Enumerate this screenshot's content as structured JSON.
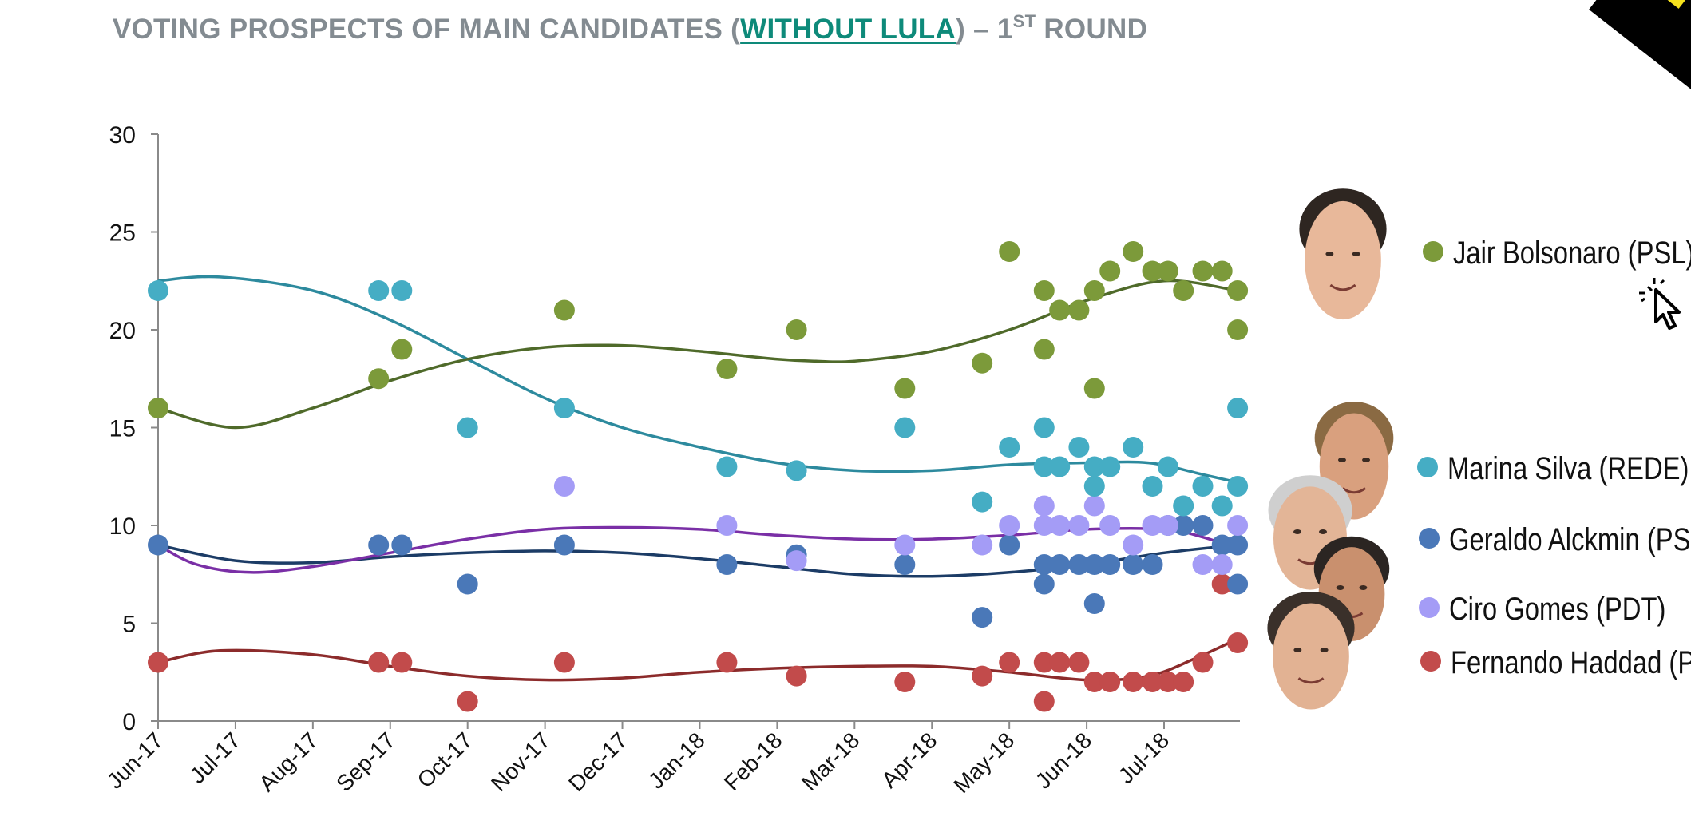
{
  "title": {
    "part1": "VOTING PROSPECTS OF MAIN CANDIDATES (",
    "highlight": "WITHOUT LULA",
    "part2": ") – 1",
    "superscript": "ST",
    "part3": " ROUND"
  },
  "icons": {
    "cursor": "cursor-arrow-icon",
    "corner": "corner-badge-icon"
  },
  "portraits": [
    {
      "name": "portrait-jair-bolsonaro",
      "skin": "#e8b89a",
      "hair": "#2e2621"
    },
    {
      "name": "portrait-marina-silva",
      "skin": "#d9a07e",
      "hair": "#8a6a43"
    },
    {
      "name": "portrait-geraldo-alckmin",
      "skin": "#e3b597",
      "hair": "#cfcfcf"
    },
    {
      "name": "portrait-ciro-gomes",
      "skin": "#c9906e",
      "hair": "#2b2522"
    },
    {
      "name": "portrait-fernando-haddad",
      "skin": "#e2b293",
      "hair": "#3a302a"
    }
  ],
  "chart_data": {
    "type": "scatter",
    "title": "VOTING PROSPECTS OF MAIN CANDIDATES (WITHOUT LULA) – 1ST ROUND",
    "ylim": [
      0,
      30
    ],
    "yticks": [
      0,
      5,
      10,
      15,
      20,
      25,
      30
    ],
    "x_categories": [
      "Jun-17",
      "Jul-17",
      "Aug-17",
      "Sep-17",
      "Oct-17",
      "Nov-17",
      "Dec-17",
      "Jan-18",
      "Feb-18",
      "Mar-18",
      "Apr-18",
      "May-18",
      "Jun-18",
      "Jul-18"
    ],
    "x_unit": "months since Jun-17",
    "xlim": [
      0,
      13.98
    ],
    "trendline": "polynomial",
    "series": [
      {
        "name": "Jair Bolsonaro (PSL)",
        "color": "#7c9a3a",
        "line_color": "#4f6a2a",
        "points": [
          [
            0,
            16
          ],
          [
            2.85,
            17.5
          ],
          [
            3.15,
            19
          ],
          [
            5.25,
            21
          ],
          [
            7.35,
            18
          ],
          [
            8.25,
            20
          ],
          [
            9.65,
            17
          ],
          [
            10.65,
            18.3
          ],
          [
            11,
            24
          ],
          [
            11.45,
            22
          ],
          [
            11.45,
            19
          ],
          [
            11.65,
            21
          ],
          [
            11.9,
            21
          ],
          [
            12.1,
            22
          ],
          [
            12.1,
            17
          ],
          [
            12.3,
            23
          ],
          [
            12.6,
            24
          ],
          [
            12.85,
            23
          ],
          [
            13.05,
            23
          ],
          [
            13.25,
            22
          ],
          [
            13.5,
            23
          ],
          [
            13.75,
            23
          ],
          [
            13.95,
            22
          ],
          [
            13.95,
            20
          ]
        ],
        "trend": [
          [
            0,
            16
          ],
          [
            1,
            15
          ],
          [
            2,
            16
          ],
          [
            3,
            17.4
          ],
          [
            4,
            18.5
          ],
          [
            5,
            19.1
          ],
          [
            6,
            19.2
          ],
          [
            7,
            18.9
          ],
          [
            8,
            18.5
          ],
          [
            8.5,
            18.4
          ],
          [
            9,
            18.4
          ],
          [
            10,
            18.9
          ],
          [
            11,
            20
          ],
          [
            12,
            21.5
          ],
          [
            13,
            22.5
          ],
          [
            13.95,
            22
          ]
        ]
      },
      {
        "name": "Marina Silva (REDE)",
        "color": "#45adc4",
        "line_color": "#2d8a9e",
        "points": [
          [
            0,
            22
          ],
          [
            2.85,
            22
          ],
          [
            3.15,
            22
          ],
          [
            4,
            15
          ],
          [
            5.25,
            16
          ],
          [
            7.35,
            13
          ],
          [
            8.25,
            12.8
          ],
          [
            9.65,
            15
          ],
          [
            10.65,
            11.2
          ],
          [
            11,
            14
          ],
          [
            11.45,
            15
          ],
          [
            11.45,
            13
          ],
          [
            11.65,
            13
          ],
          [
            11.9,
            14
          ],
          [
            12.1,
            13
          ],
          [
            12.1,
            12
          ],
          [
            12.3,
            13
          ],
          [
            12.6,
            14
          ],
          [
            12.85,
            12
          ],
          [
            13.05,
            13
          ],
          [
            13.25,
            11
          ],
          [
            13.5,
            12
          ],
          [
            13.75,
            11
          ],
          [
            13.95,
            16
          ],
          [
            13.95,
            12
          ]
        ],
        "trend": [
          [
            0,
            22.5
          ],
          [
            0.8,
            22.7
          ],
          [
            2,
            22
          ],
          [
            3,
            20.5
          ],
          [
            4,
            18.5
          ],
          [
            5,
            16.5
          ],
          [
            6,
            15
          ],
          [
            7,
            14
          ],
          [
            8,
            13.2
          ],
          [
            9,
            12.8
          ],
          [
            10,
            12.8
          ],
          [
            11,
            13.1
          ],
          [
            12,
            13.2
          ],
          [
            12.8,
            13.2
          ],
          [
            13.5,
            12.6
          ],
          [
            13.95,
            12.2
          ]
        ]
      },
      {
        "name": "Geraldo Alckmin (PSDB)",
        "color": "#4a78b8",
        "line_color": "#1c3c66",
        "points": [
          [
            0,
            9
          ],
          [
            2.85,
            9
          ],
          [
            3.15,
            9
          ],
          [
            4,
            7
          ],
          [
            5.25,
            9
          ],
          [
            7.35,
            8
          ],
          [
            8.25,
            8.5
          ],
          [
            9.65,
            8
          ],
          [
            10.65,
            5.3
          ],
          [
            11,
            9
          ],
          [
            11.45,
            8
          ],
          [
            11.45,
            7
          ],
          [
            11.65,
            8
          ],
          [
            11.9,
            8
          ],
          [
            12.1,
            8
          ],
          [
            12.1,
            6
          ],
          [
            12.3,
            8
          ],
          [
            12.6,
            8
          ],
          [
            12.85,
            8
          ],
          [
            13.05,
            10
          ],
          [
            13.25,
            10
          ],
          [
            13.5,
            10
          ],
          [
            13.75,
            9
          ],
          [
            13.95,
            9
          ],
          [
            13.95,
            7
          ]
        ],
        "trend": [
          [
            0,
            9
          ],
          [
            1,
            8.2
          ],
          [
            2,
            8.1
          ],
          [
            3,
            8.4
          ],
          [
            4,
            8.6
          ],
          [
            5,
            8.7
          ],
          [
            6,
            8.6
          ],
          [
            7,
            8.3
          ],
          [
            8,
            7.9
          ],
          [
            9,
            7.5
          ],
          [
            10,
            7.4
          ],
          [
            11,
            7.6
          ],
          [
            12,
            8
          ],
          [
            13,
            8.6
          ],
          [
            13.95,
            9
          ]
        ]
      },
      {
        "name": "Ciro Gomes (PDT)",
        "color": "#a49cf6",
        "line_color": "#7a2fa6",
        "points": [
          [
            5.25,
            12
          ],
          [
            7.35,
            10
          ],
          [
            8.25,
            8.2
          ],
          [
            9.65,
            9
          ],
          [
            10.65,
            9
          ],
          [
            11,
            10
          ],
          [
            11.45,
            11
          ],
          [
            11.45,
            10
          ],
          [
            11.65,
            10
          ],
          [
            11.9,
            10
          ],
          [
            12.1,
            11
          ],
          [
            12.3,
            10
          ],
          [
            12.6,
            9
          ],
          [
            12.85,
            10
          ],
          [
            13.05,
            10
          ],
          [
            13.5,
            8
          ],
          [
            13.75,
            8
          ],
          [
            13.95,
            10
          ]
        ],
        "trend": [
          [
            0,
            9
          ],
          [
            0.5,
            8
          ],
          [
            1.2,
            7.6
          ],
          [
            2,
            7.9
          ],
          [
            3,
            8.6
          ],
          [
            4,
            9.3
          ],
          [
            5,
            9.8
          ],
          [
            6,
            9.9
          ],
          [
            7,
            9.8
          ],
          [
            8,
            9.5
          ],
          [
            9,
            9.3
          ],
          [
            10,
            9.3
          ],
          [
            11,
            9.5
          ],
          [
            12,
            9.8
          ],
          [
            13,
            9.8
          ],
          [
            13.5,
            9.4
          ],
          [
            13.95,
            8.8
          ]
        ]
      },
      {
        "name": "Fernando Haddad (PT)",
        "color": "#c24b4b",
        "line_color": "#8c2b2b",
        "points": [
          [
            0,
            3
          ],
          [
            2.85,
            3
          ],
          [
            3.15,
            3
          ],
          [
            4,
            1
          ],
          [
            5.25,
            3
          ],
          [
            7.35,
            3
          ],
          [
            8.25,
            2.3
          ],
          [
            9.65,
            2
          ],
          [
            10.65,
            2.3
          ],
          [
            11,
            3
          ],
          [
            11.45,
            3
          ],
          [
            11.45,
            1
          ],
          [
            11.65,
            3
          ],
          [
            11.9,
            3
          ],
          [
            12.1,
            2
          ],
          [
            12.3,
            2
          ],
          [
            12.6,
            2
          ],
          [
            12.85,
            2
          ],
          [
            13.05,
            2
          ],
          [
            13.25,
            2
          ],
          [
            13.5,
            3
          ],
          [
            13.75,
            7
          ],
          [
            13.95,
            4
          ]
        ],
        "trend": [
          [
            0,
            3
          ],
          [
            0.8,
            3.6
          ],
          [
            2,
            3.4
          ],
          [
            3,
            2.8
          ],
          [
            4,
            2.3
          ],
          [
            5,
            2.1
          ],
          [
            6,
            2.2
          ],
          [
            7,
            2.5
          ],
          [
            8,
            2.7
          ],
          [
            9,
            2.8
          ],
          [
            10,
            2.8
          ],
          [
            11,
            2.5
          ],
          [
            12,
            2.1
          ],
          [
            12.8,
            2.3
          ],
          [
            13.4,
            3.2
          ],
          [
            13.95,
            4.2
          ]
        ]
      }
    ],
    "legend": [
      {
        "label": "Jair Bolsonaro (PSL)",
        "color": "#7c9a3a"
      },
      {
        "label": "Marina Silva (REDE)",
        "color": "#45adc4"
      },
      {
        "label": "Geraldo Alckmin (PSDB)",
        "color": "#4a78b8"
      },
      {
        "label": "Ciro Gomes (PDT)",
        "color": "#a49cf6"
      },
      {
        "label": "Fernando Haddad (PT)",
        "color": "#c24b4b"
      }
    ]
  }
}
